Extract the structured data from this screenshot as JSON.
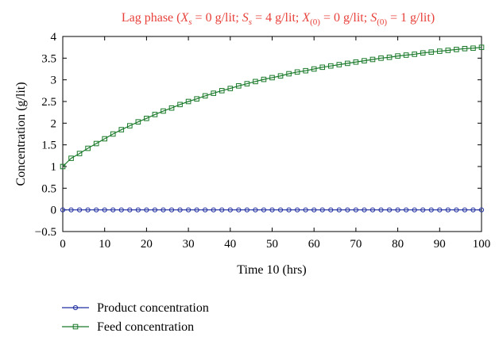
{
  "chart_data": {
    "type": "line",
    "title_parts": {
      "lead": "Lag phase (",
      "xs_sym": "X",
      "xs_sub": "s",
      "xs_val": " = 0 g/lit; ",
      "ss_sym": "S",
      "ss_sub": "s",
      "ss_val": " = 4 g/lit; ",
      "x0_sym": "X",
      "x0_sub": "(0)",
      "x0_val": " = 0 g/lit; ",
      "s0_sym": "S",
      "s0_sub": "(0)",
      "s0_val": " = 1 g/lit)"
    },
    "xlabel": "Time 10 (hrs)",
    "ylabel": "Concentration (g/lit)",
    "xlim": [
      0,
      100
    ],
    "ylim": [
      -0.5,
      4
    ],
    "xticks": [
      0,
      10,
      20,
      30,
      40,
      50,
      60,
      70,
      80,
      90,
      100
    ],
    "yticks": [
      -0.5,
      0,
      0.5,
      1,
      1.5,
      2,
      2.5,
      3,
      3.5,
      4
    ],
    "ytick_labels": [
      "−0.5",
      "0",
      "0.5",
      "1",
      "1.5",
      "2",
      "2.5",
      "3",
      "3.5",
      "4"
    ],
    "grid": false,
    "legend_position": "bottom-left, below plot",
    "series": [
      {
        "name": "Product concentration",
        "color": "#1f2fa0",
        "marker": "circle",
        "x_start": 0,
        "x_end": 100,
        "x_step": 2,
        "values": [
          0,
          0,
          0,
          0,
          0,
          0,
          0,
          0,
          0,
          0,
          0,
          0,
          0,
          0,
          0,
          0,
          0,
          0,
          0,
          0,
          0,
          0,
          0,
          0,
          0,
          0,
          0,
          0,
          0,
          0,
          0,
          0,
          0,
          0,
          0,
          0,
          0,
          0,
          0,
          0,
          0,
          0,
          0,
          0,
          0,
          0,
          0,
          0,
          0,
          0,
          0
        ]
      },
      {
        "name": "Feed concentration",
        "color": "#1a7a2a",
        "marker": "square",
        "x_start": 0,
        "x_end": 100,
        "x_step": 2,
        "values": [
          1.0,
          1.19,
          1.3,
          1.42,
          1.53,
          1.64,
          1.75,
          1.85,
          1.94,
          2.03,
          2.11,
          2.2,
          2.28,
          2.35,
          2.43,
          2.5,
          2.56,
          2.63,
          2.69,
          2.75,
          2.8,
          2.86,
          2.91,
          2.96,
          3.01,
          3.05,
          3.09,
          3.14,
          3.18,
          3.21,
          3.25,
          3.29,
          3.32,
          3.35,
          3.38,
          3.41,
          3.44,
          3.47,
          3.5,
          3.52,
          3.55,
          3.57,
          3.59,
          3.62,
          3.64,
          3.66,
          3.68,
          3.7,
          3.72,
          3.73,
          3.75
        ]
      }
    ]
  }
}
